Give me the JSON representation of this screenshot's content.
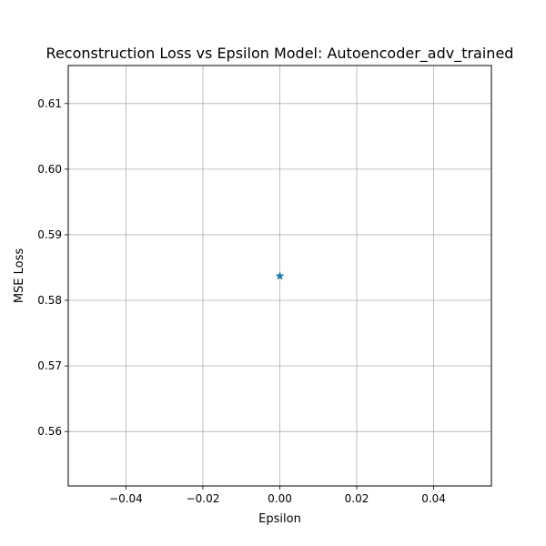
{
  "chart_data": {
    "type": "scatter",
    "title": "Reconstruction Loss vs Epsilon Model: Autoencoder_adv_trained",
    "xlabel": "Epsilon",
    "ylabel": "MSE Loss",
    "xlim": [
      -0.055,
      0.055
    ],
    "ylim": [
      0.5517,
      0.6158
    ],
    "xticks": [
      -0.04,
      -0.02,
      0.0,
      0.02,
      0.04
    ],
    "xtick_labels": [
      "−0.04",
      "−0.02",
      "0.00",
      "0.02",
      "0.04"
    ],
    "yticks": [
      0.56,
      0.57,
      0.58,
      0.59,
      0.6,
      0.61
    ],
    "ytick_labels": [
      "0.56",
      "0.57",
      "0.58",
      "0.59",
      "0.60",
      "0.61"
    ],
    "grid": true,
    "marker": "star",
    "series": [
      {
        "x": [
          0.0
        ],
        "y": [
          0.5837
        ],
        "color": "#1f77b4"
      }
    ]
  }
}
